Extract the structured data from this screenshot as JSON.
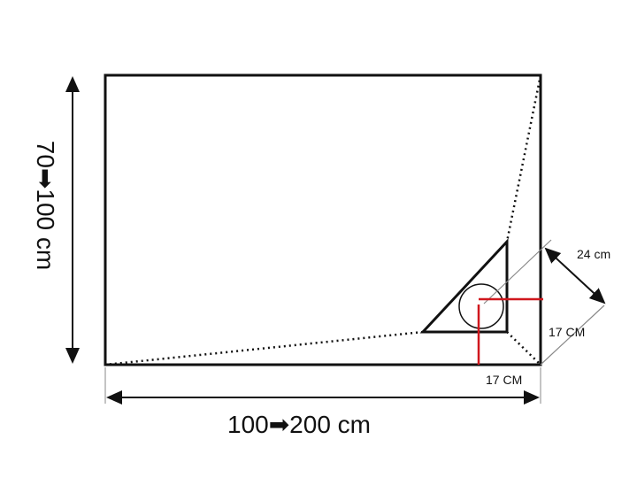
{
  "labels": {
    "height_range": "70➡100 cm",
    "width_range": "100➡200 cm",
    "diagonal": "24 cm",
    "side_right": "17 CM",
    "side_bottom": "17 CM"
  },
  "colors": {
    "outline": "#111111",
    "marker": "#d0171d",
    "guide": "#888888"
  }
}
